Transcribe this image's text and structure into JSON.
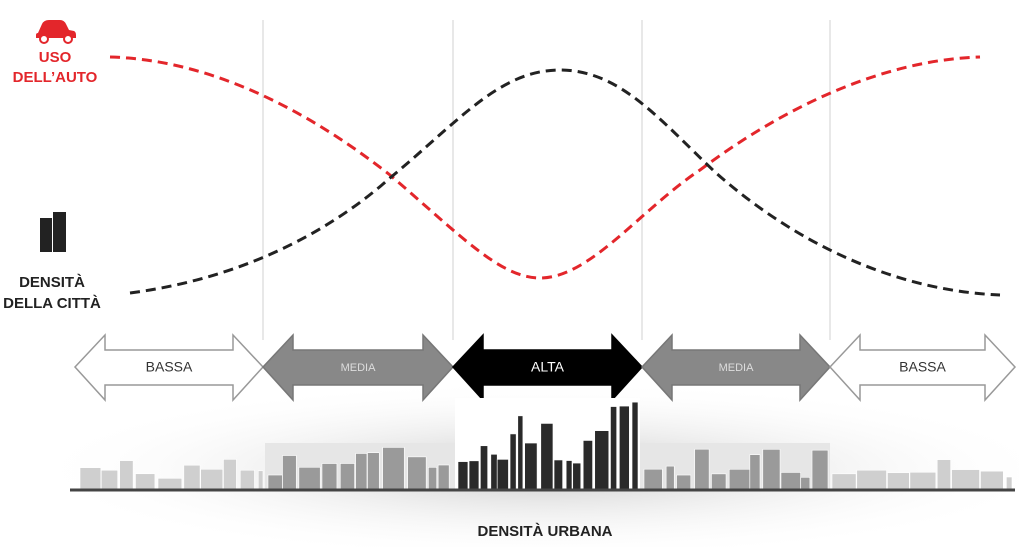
{
  "car_use": {
    "lines": [
      "USO",
      "DELL’AUTO"
    ]
  },
  "city_density": {
    "lines": [
      "DENSITÀ",
      "DELLA CITTÀ"
    ]
  },
  "zones": [
    "BASSA",
    "MEDIA",
    "ALTA",
    "MEDIA",
    "BASSA"
  ],
  "x_axis_label": "DENSITÀ URBANA"
}
